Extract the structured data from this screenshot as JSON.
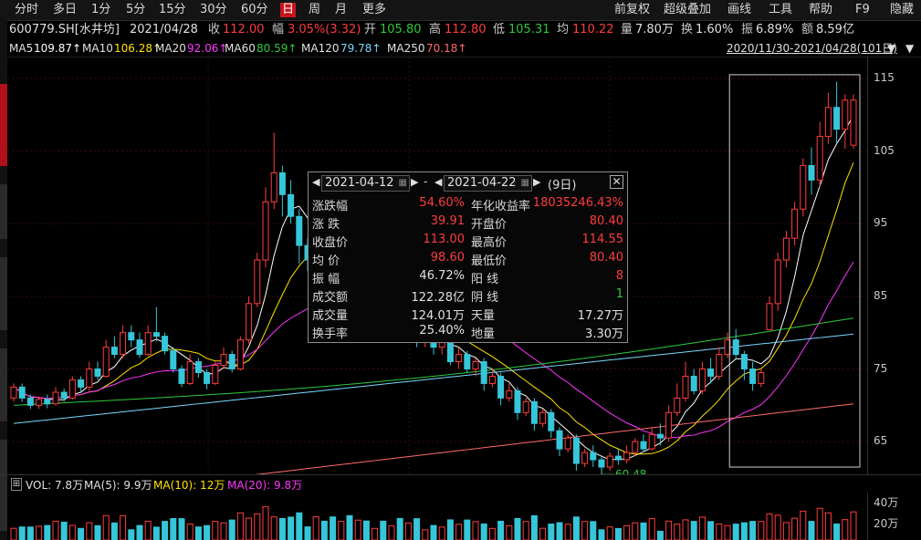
{
  "toolbar": {
    "periods": [
      "分时",
      "多日",
      "1分",
      "5分",
      "15分",
      "30分",
      "60分",
      "日",
      "周",
      "月",
      "更多"
    ],
    "active": "日",
    "right": [
      "前复权",
      "超级叠加",
      "画线",
      "工具",
      "帮助",
      "F9",
      "隐藏"
    ]
  },
  "quote": {
    "code": "600779.SH[水井坊]",
    "date": "2021/04/28",
    "close_label": "收",
    "close": "112.00",
    "change_label": "幅",
    "change": "3.05%(3.32)",
    "open_label": "开",
    "open": "105.80",
    "high_label": "高",
    "high": "112.80",
    "low_label": "低",
    "low": "105.31",
    "avg_label": "均",
    "avg": "110.22",
    "vol_label": "量",
    "vol": "7.80万",
    "turnover_label": "换",
    "turnover": "1.60%",
    "amp_label": "振",
    "amp": "6.89%",
    "amount_label": "额",
    "amount": "8.59亿"
  },
  "ma": [
    {
      "name": "MA5",
      "value": "109.87↑",
      "color": "#ffffff"
    },
    {
      "name": "MA10",
      "value": "106.28↑",
      "color": "#ffe100"
    },
    {
      "name": "MA20",
      "value": "92.06↑",
      "color": "#ff34ff"
    },
    {
      "name": "MA60",
      "value": "80.59↑",
      "color": "#2fc93a"
    },
    {
      "name": "MA120",
      "value": "79.78↑",
      "color": "#79d8ff"
    },
    {
      "name": "MA250",
      "value": "70.18↑",
      "color": "#ff6b6b"
    }
  ],
  "range": "2020/11/30-2021/04/28(101日)",
  "yaxis": [
    "115",
    "105",
    "95",
    "85",
    "75",
    "65"
  ],
  "volume": {
    "label": "VOL: 7.8万",
    "ma5": "MA(5): 9.9万",
    "ma10": "MA(10): 12万",
    "ma20": "MA(20): 9.8万",
    "ticks": [
      "40万",
      "20万"
    ]
  },
  "annotation_low": "60.48",
  "popup": {
    "start": "2021-04-12",
    "end": "2021-04-22",
    "days": "(9日)",
    "rows": [
      {
        "k1": "涨跌幅",
        "v1": "54.60%",
        "k2": "年化收益率",
        "v2": "18035246.43%"
      },
      {
        "k1": "涨  跌",
        "v1": "39.91",
        "k2": "开盘价",
        "v2": "80.40"
      },
      {
        "k1": "收盘价",
        "v1": "113.00",
        "k2": "最高价",
        "v2": "114.55"
      },
      {
        "k1": "均  价",
        "v1": "98.60",
        "k2": "最低价",
        "v2": "80.40"
      },
      {
        "k1": "振  幅",
        "v1": "46.72%",
        "k2": "阳  线",
        "v2": "8"
      },
      {
        "k1": "成交额",
        "v1": "122.28亿",
        "k2": "阴  线",
        "v2": "1"
      },
      {
        "k1": "成交量",
        "v1": "124.01万",
        "k2": "天量",
        "v2": "17.27万"
      },
      {
        "k1": "换手率",
        "v1": "25.40%",
        "k2": "地量",
        "v2": "3.30万"
      }
    ]
  },
  "candles": [
    [
      71,
      72.5,
      70.5,
      73
    ],
    [
      72.5,
      71,
      70.5,
      73
    ],
    [
      71,
      70,
      69.5,
      71.5
    ],
    [
      70,
      70.8,
      69.5,
      71.2
    ],
    [
      70.8,
      70.2,
      69.6,
      71.5
    ],
    [
      70.2,
      71.8,
      70,
      72.5
    ],
    [
      71.8,
      71,
      70.5,
      72.3
    ],
    [
      71,
      73.5,
      70.8,
      74
    ],
    [
      73.5,
      72.5,
      71.8,
      74
    ],
    [
      72.5,
      75,
      72,
      76
    ],
    [
      75,
      74,
      73.5,
      76
    ],
    [
      74,
      78,
      73.8,
      79
    ],
    [
      78,
      77,
      76.5,
      79.5
    ],
    [
      77,
      80,
      76.5,
      81
    ],
    [
      80,
      79,
      78,
      81
    ],
    [
      79,
      77,
      76.5,
      80
    ],
    [
      77,
      80,
      76.8,
      81
    ],
    [
      80,
      79.5,
      78.8,
      83.5
    ],
    [
      79.5,
      77.5,
      77,
      80
    ],
    [
      77.5,
      75,
      74.5,
      78
    ],
    [
      75,
      73,
      72.5,
      75.5
    ],
    [
      73,
      76,
      72.8,
      77
    ],
    [
      76,
      74.5,
      73.8,
      76.5
    ],
    [
      74.5,
      73,
      72.2,
      75
    ],
    [
      73,
      75.5,
      72.8,
      76
    ],
    [
      75.5,
      77,
      75,
      78
    ],
    [
      77,
      75,
      74.5,
      77.5
    ],
    [
      75,
      79,
      74.8,
      79.5
    ],
    [
      79,
      84,
      78.5,
      85
    ],
    [
      84,
      90,
      83.5,
      91
    ],
    [
      90,
      98,
      89,
      100
    ],
    [
      98,
      102,
      97,
      107.5
    ],
    [
      102,
      99,
      96,
      103
    ],
    [
      99,
      96,
      95,
      101
    ],
    [
      96,
      92,
      89.5,
      97
    ],
    [
      92,
      90,
      88.5,
      93
    ],
    [
      90,
      95,
      89.5,
      96
    ],
    [
      95,
      92,
      90,
      96.5
    ],
    [
      92,
      88,
      86,
      93
    ],
    [
      88,
      90,
      87,
      91.5
    ],
    [
      90,
      86.5,
      85,
      91
    ],
    [
      86.5,
      88,
      86,
      89
    ],
    [
      88,
      84,
      82,
      88.5
    ],
    [
      84,
      85,
      83,
      86.5
    ],
    [
      85,
      82,
      81,
      85.5
    ],
    [
      82,
      83,
      80.5,
      84
    ],
    [
      83,
      80,
      79,
      83.5
    ],
    [
      80,
      81,
      78.8,
      82
    ],
    [
      81,
      79,
      78,
      81.5
    ],
    [
      79,
      80,
      78,
      81
    ],
    [
      80,
      78,
      77,
      80.5
    ],
    [
      78,
      79,
      77,
      80
    ],
    [
      79,
      76,
      75.5,
      79.5
    ],
    [
      76,
      77,
      75,
      78
    ],
    [
      77,
      75,
      74.5,
      77.5
    ],
    [
      75,
      76,
      74,
      76.5
    ],
    [
      76,
      73,
      72,
      76.5
    ],
    [
      73,
      74,
      72.5,
      75
    ],
    [
      74,
      71,
      70,
      74.5
    ],
    [
      71,
      72,
      70.5,
      73
    ],
    [
      72,
      69,
      68,
      72.5
    ],
    [
      69,
      70.5,
      68.5,
      71
    ],
    [
      70.5,
      67.5,
      66.5,
      71
    ],
    [
      67.5,
      69,
      67,
      69.5
    ],
    [
      69,
      66.5,
      65.5,
      69.5
    ],
    [
      66.5,
      64,
      63,
      67
    ],
    [
      64,
      65.5,
      63.5,
      66
    ],
    [
      65.5,
      62,
      61,
      66
    ],
    [
      62,
      63.5,
      61.5,
      64
    ],
    [
      63.5,
      62.5,
      61.5,
      64.5
    ],
    [
      62.5,
      61.5,
      60.48,
      63
    ],
    [
      61.5,
      63,
      61,
      63.5
    ],
    [
      63,
      62.5,
      61.8,
      64
    ],
    [
      62.5,
      63.5,
      62,
      64.5
    ],
    [
      63.5,
      65,
      63,
      65.5
    ],
    [
      65,
      64,
      63.5,
      66
    ],
    [
      64,
      66,
      63.8,
      67
    ],
    [
      66,
      65.5,
      64.5,
      67.5
    ],
    [
      65.5,
      69,
      65,
      70
    ],
    [
      69,
      71,
      68.5,
      73
    ],
    [
      71,
      74,
      70.5,
      76
    ],
    [
      74,
      72,
      71.5,
      75
    ],
    [
      72,
      75,
      71.5,
      76
    ],
    [
      75,
      74,
      73,
      76.5
    ],
    [
      74,
      77,
      73.5,
      78
    ],
    [
      77,
      79,
      76.5,
      80
    ],
    [
      79,
      77,
      76.5,
      80.5
    ],
    [
      77,
      75,
      73.5,
      77.5
    ],
    [
      75,
      73,
      72,
      76
    ],
    [
      73,
      74.5,
      72.5,
      75
    ],
    [
      80.4,
      84,
      80.4,
      85
    ],
    [
      84,
      90,
      83,
      91
    ],
    [
      90,
      93,
      89,
      94
    ],
    [
      93,
      97,
      92,
      98
    ],
    [
      97,
      103,
      96,
      104
    ],
    [
      103,
      101,
      99,
      105.5
    ],
    [
      101,
      107,
      100,
      109
    ],
    [
      107,
      111,
      106,
      113
    ],
    [
      111,
      108,
      106,
      114.55
    ],
    [
      108,
      112,
      105.3,
      112.8
    ],
    [
      105.8,
      112,
      105.31,
      112.8
    ]
  ]
}
